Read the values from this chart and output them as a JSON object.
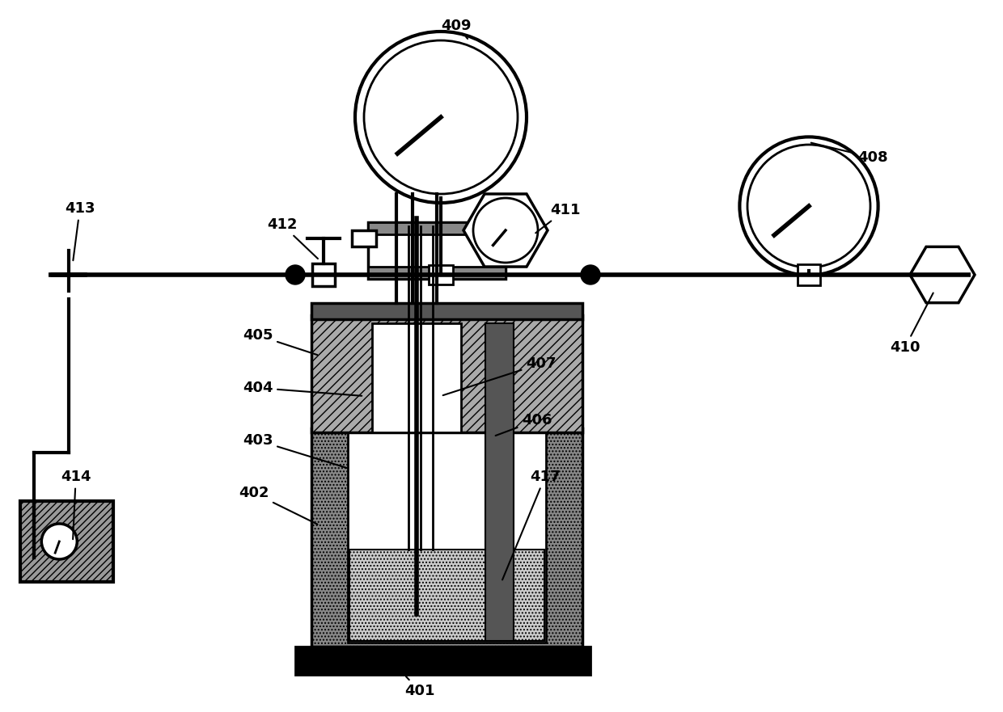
{
  "bg_color": "#ffffff",
  "lc": "#000000",
  "label_fontsize": 13,
  "label_fontweight": "bold",
  "fig_w": 12.4,
  "fig_h": 8.81,
  "dpi": 100
}
